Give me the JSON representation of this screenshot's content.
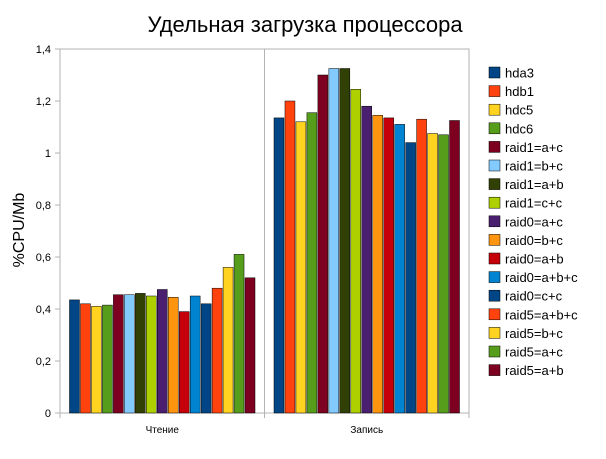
{
  "chart_data": {
    "type": "bar",
    "title": "Удельная загрузка процессора",
    "xlabel": "",
    "ylabel": "%CPU/Mb",
    "ylim": [
      0,
      1.4
    ],
    "yticks": [
      "0",
      "0,2",
      "0,4",
      "0,6",
      "0,8",
      "1",
      "1,2",
      "1,4"
    ],
    "grid": false,
    "legend_position": "right",
    "categories": [
      "Чтение",
      "Запись"
    ],
    "series": [
      {
        "name": "hda3",
        "color": "#004586",
        "values": [
          0.435,
          1.135
        ]
      },
      {
        "name": "hdb1",
        "color": "#ff420e",
        "values": [
          0.42,
          1.2
        ]
      },
      {
        "name": "hdc5",
        "color": "#ffd320",
        "values": [
          0.41,
          1.12
        ]
      },
      {
        "name": "hdc6",
        "color": "#579d1c",
        "values": [
          0.415,
          1.155
        ]
      },
      {
        "name": "raid1=a+c",
        "color": "#7e0021",
        "values": [
          0.455,
          1.3
        ]
      },
      {
        "name": "raid1=b+c",
        "color": "#83caff",
        "values": [
          0.455,
          1.325
        ]
      },
      {
        "name": "raid1=a+b",
        "color": "#314004",
        "values": [
          0.46,
          1.325
        ]
      },
      {
        "name": "raid1=c+c",
        "color": "#aecf00",
        "values": [
          0.45,
          1.245
        ]
      },
      {
        "name": "raid0=a+c",
        "color": "#4b1f6f",
        "values": [
          0.475,
          1.18
        ]
      },
      {
        "name": "raid0=b+c",
        "color": "#ff950e",
        "values": [
          0.445,
          1.145
        ]
      },
      {
        "name": "raid0=a+b",
        "color": "#c5000b",
        "values": [
          0.39,
          1.135
        ]
      },
      {
        "name": "raid0=a+b+c",
        "color": "#0084d1",
        "values": [
          0.45,
          1.11
        ]
      },
      {
        "name": "raid0=c+c",
        "color": "#004586",
        "values": [
          0.42,
          1.04
        ]
      },
      {
        "name": "raid5=a+b+c",
        "color": "#ff420e",
        "values": [
          0.48,
          1.13
        ]
      },
      {
        "name": "raid5=b+c",
        "color": "#ffd320",
        "values": [
          0.56,
          1.075
        ]
      },
      {
        "name": "raid5=a+c",
        "color": "#579d1c",
        "values": [
          0.61,
          1.07
        ]
      },
      {
        "name": "raid5=a+b",
        "color": "#7e0021",
        "values": [
          0.52,
          1.125
        ]
      }
    ]
  }
}
